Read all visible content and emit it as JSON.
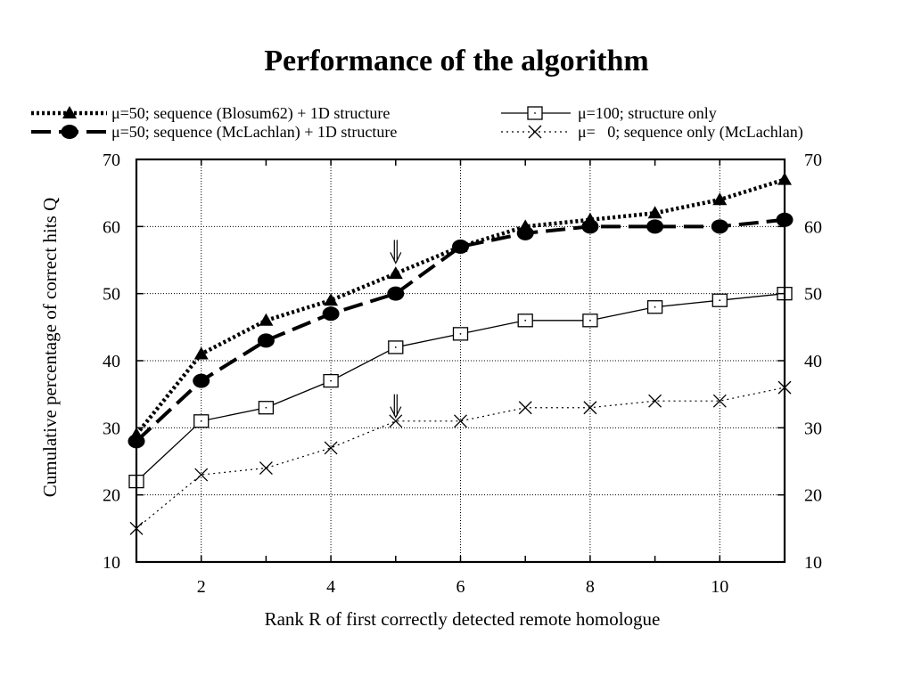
{
  "title": "Performance of the algorithm",
  "chart_data": {
    "type": "line",
    "title": "Performance of the algorithm",
    "xlabel": "Rank R of first correctly detected remote homologue",
    "ylabel": "Cumulative percentage of correct hits Q",
    "xlim": [
      1,
      11
    ],
    "ylim": [
      10,
      70
    ],
    "x_ticks": [
      2,
      4,
      6,
      8,
      10
    ],
    "y_ticks": [
      10,
      20,
      30,
      40,
      50,
      60,
      70
    ],
    "grid": true,
    "legend_position": "top",
    "x": [
      1,
      2,
      3,
      4,
      5,
      6,
      7,
      8,
      9,
      10,
      11
    ],
    "series": [
      {
        "name": "μ=50; sequence (Blosum62) + 1D structure",
        "marker": "triangle",
        "line_style": "dotted-heavy",
        "values": [
          29,
          41,
          46,
          49,
          53,
          57,
          60,
          61,
          62,
          64,
          67
        ]
      },
      {
        "name": "μ=50; sequence (McLachlan) + 1D structure",
        "marker": "filled-circle",
        "line_style": "long-dash",
        "values": [
          28,
          37,
          43,
          47,
          50,
          57,
          59,
          60,
          60,
          60,
          61
        ]
      },
      {
        "name": "μ=100; structure only",
        "marker": "open-square",
        "line_style": "solid-thin",
        "values": [
          22,
          31,
          33,
          37,
          42,
          44,
          46,
          46,
          48,
          49,
          50
        ]
      },
      {
        "name": "μ=   0; sequence only (McLachlan)",
        "marker": "cross",
        "line_style": "dotted-thin",
        "values": [
          15,
          23,
          24,
          27,
          31,
          31,
          33,
          33,
          34,
          34,
          36
        ]
      }
    ],
    "annotations": [
      {
        "type": "arrow-down",
        "x": 5,
        "y": 58
      },
      {
        "type": "arrow-down",
        "x": 5,
        "y": 35
      }
    ]
  }
}
